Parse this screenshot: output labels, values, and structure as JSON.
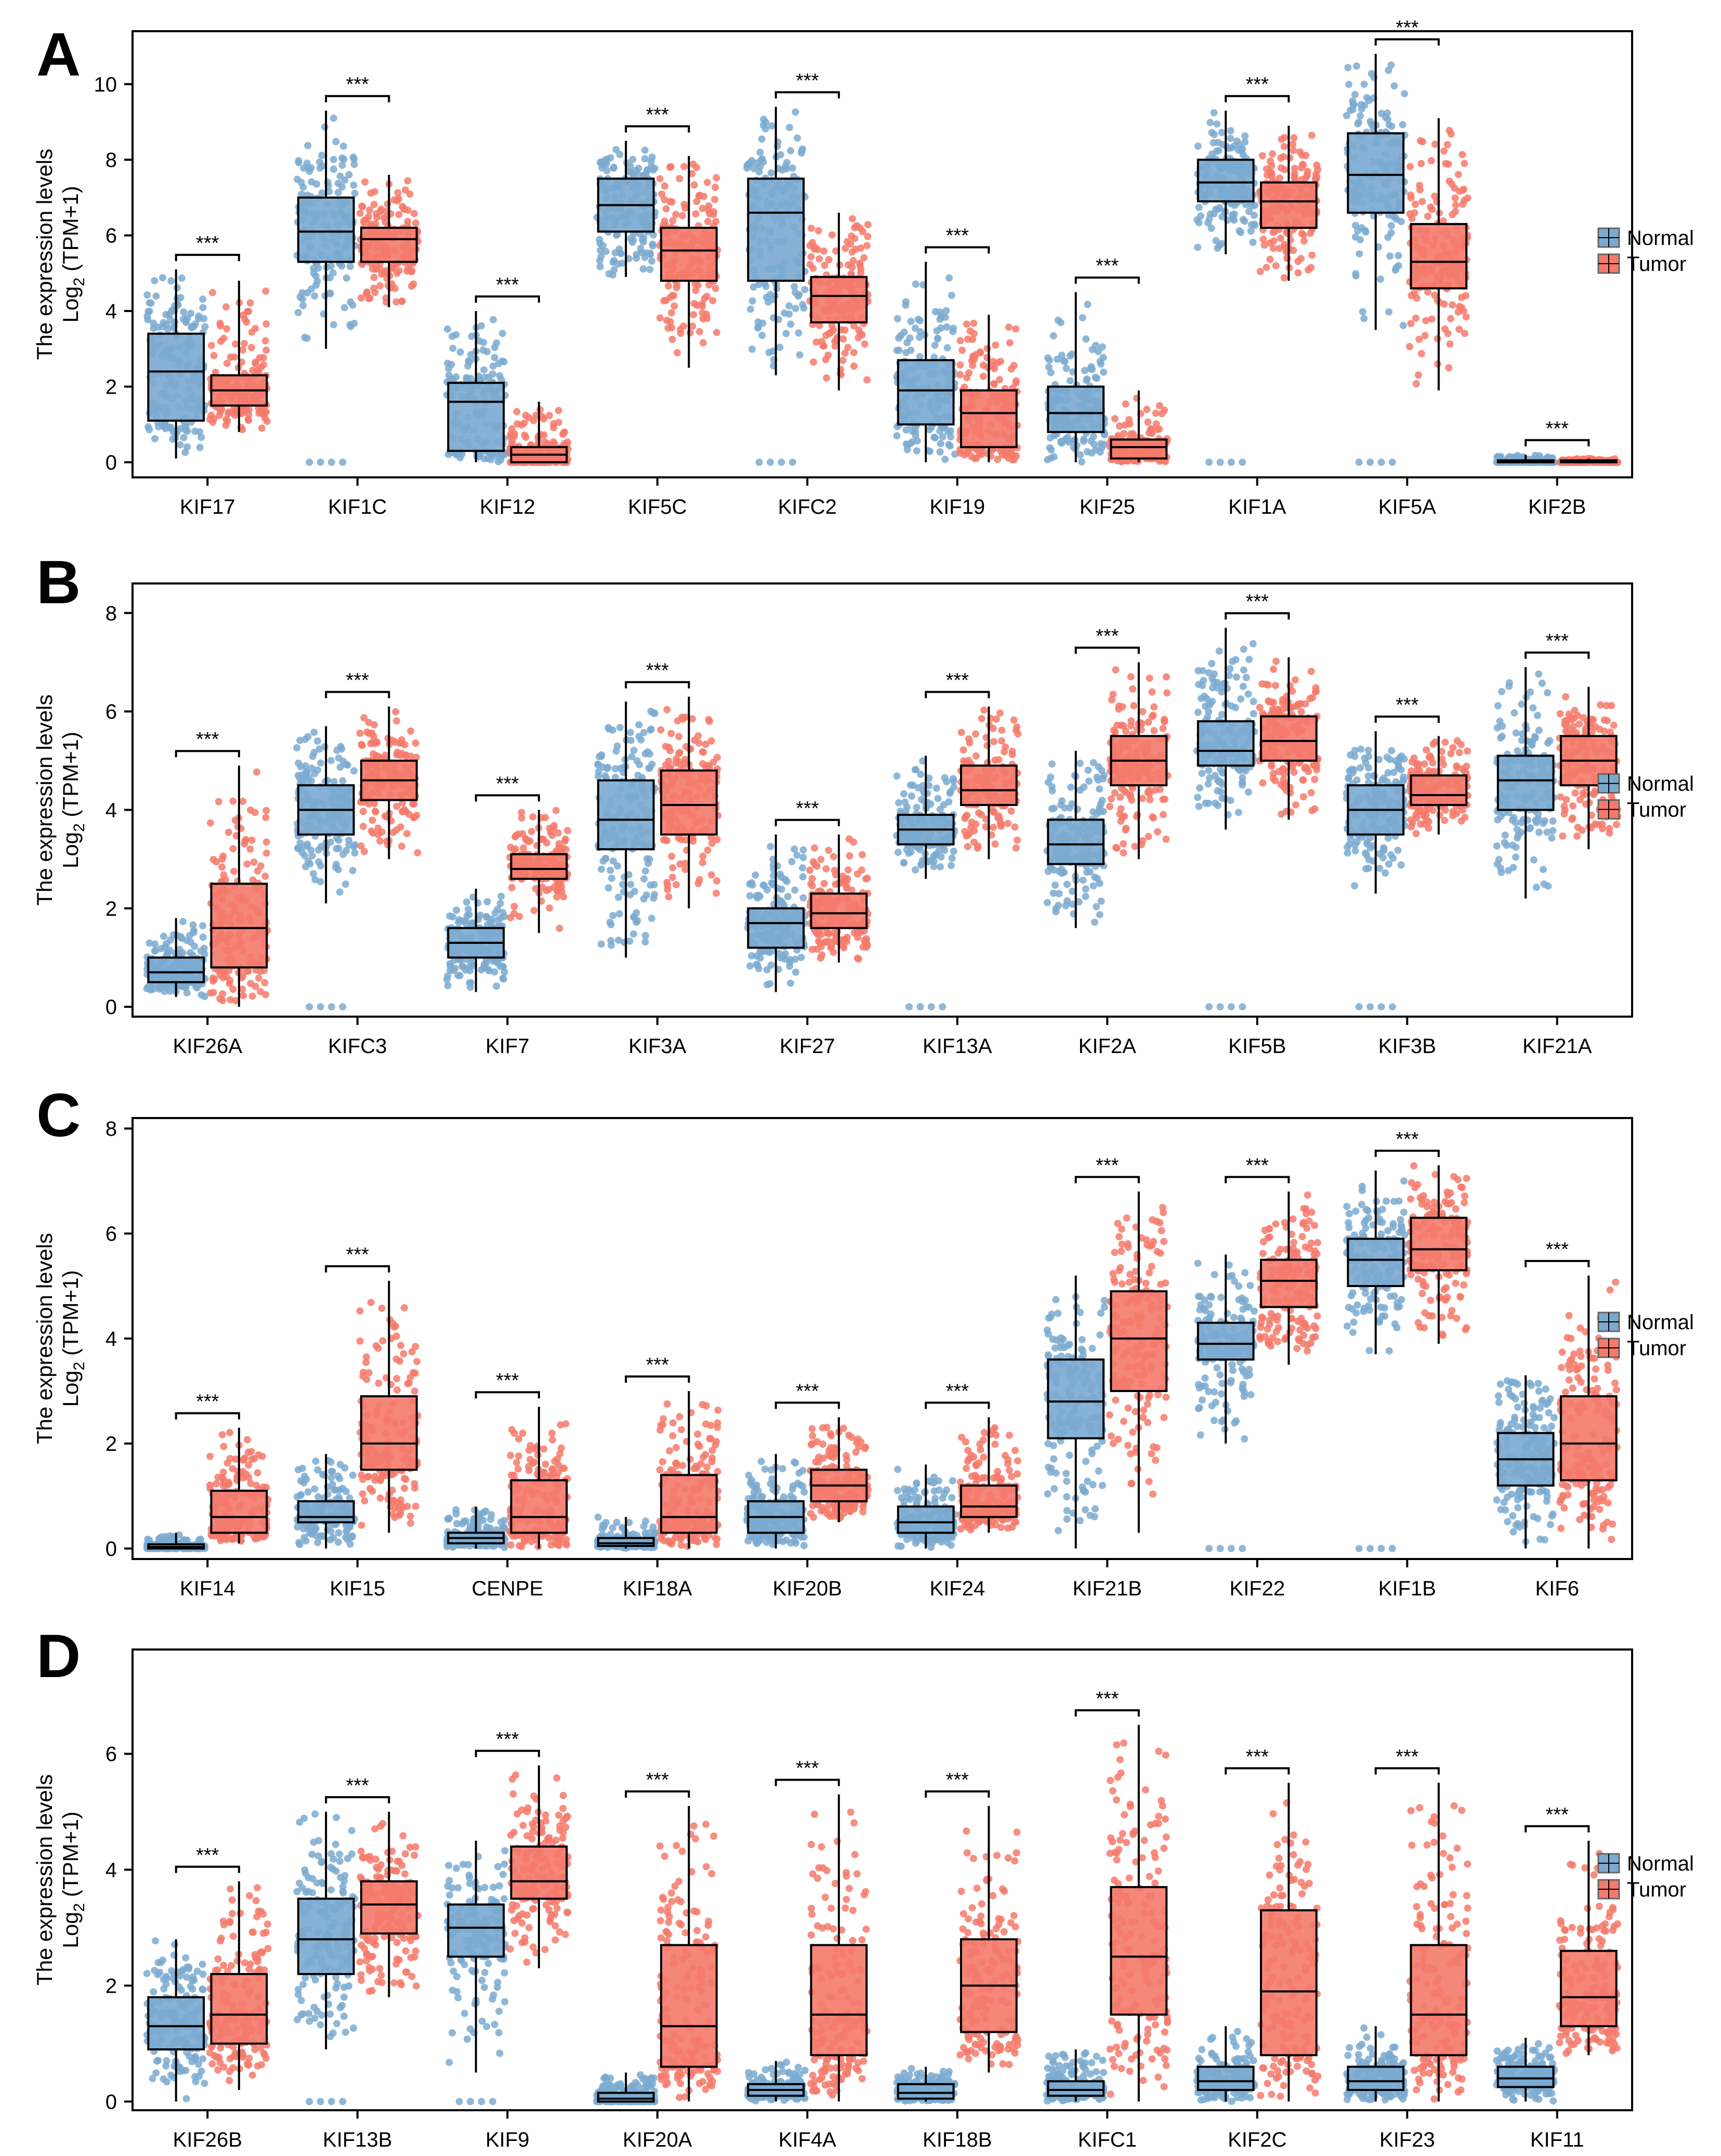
{
  "colors": {
    "normal": "#7BAAD0",
    "tumor": "#F47A6B",
    "axis": "#000000"
  },
  "significance": "***",
  "legend": {
    "normal": "Normal",
    "tumor": "Tumor"
  },
  "ylabel_main": "The expression levels",
  "ylabel_log": "Log",
  "ylabel_sub": "2",
  "ylabel_tail": " (TPM+1)",
  "chart_data": [
    {
      "panel": "A",
      "type": "box",
      "ylim": [
        -0.4,
        11.4
      ],
      "yticks": [
        0,
        2,
        4,
        6,
        8,
        10
      ],
      "categories": [
        "KIF17",
        "KIF1C",
        "KIF12",
        "KIF5C",
        "KIFC2",
        "KIF19",
        "KIF25",
        "KIF1A",
        "KIF5A",
        "KIF2B"
      ],
      "series": [
        {
          "name": "Normal",
          "boxes": [
            [
              0.1,
              1.1,
              2.4,
              3.4,
              5.1
            ],
            [
              3.0,
              5.3,
              6.1,
              7.0,
              9.3
            ],
            [
              0.0,
              0.3,
              1.6,
              2.1,
              4.0
            ],
            [
              4.9,
              6.1,
              6.8,
              7.5,
              8.5
            ],
            [
              2.3,
              4.8,
              6.6,
              7.5,
              9.4
            ],
            [
              0.0,
              1.0,
              1.9,
              2.7,
              5.3
            ],
            [
              0.0,
              0.8,
              1.3,
              2.0,
              4.5
            ],
            [
              5.5,
              6.9,
              7.4,
              8.0,
              9.3
            ],
            [
              3.5,
              6.6,
              7.6,
              8.7,
              10.8
            ],
            [
              0.0,
              0.0,
              0.0,
              0.05,
              0.2
            ]
          ]
        },
        {
          "name": "Tumor",
          "boxes": [
            [
              0.8,
              1.5,
              1.9,
              2.3,
              4.8
            ],
            [
              4.1,
              5.3,
              5.9,
              6.2,
              7.6
            ],
            [
              0.0,
              0.0,
              0.2,
              0.4,
              1.6
            ],
            [
              2.5,
              4.8,
              5.6,
              6.2,
              8.1
            ],
            [
              1.9,
              3.7,
              4.4,
              4.9,
              6.6
            ],
            [
              0.0,
              0.4,
              1.3,
              1.9,
              3.9
            ],
            [
              0.0,
              0.1,
              0.4,
              0.6,
              1.9
            ],
            [
              4.8,
              6.2,
              6.9,
              7.4,
              8.9
            ],
            [
              1.9,
              4.6,
              5.3,
              6.3,
              9.1
            ],
            [
              0.0,
              0.0,
              0.0,
              0.05,
              0.1
            ]
          ]
        }
      ]
    },
    {
      "panel": "B",
      "type": "box",
      "ylim": [
        -0.2,
        8.6
      ],
      "yticks": [
        0,
        2,
        4,
        6,
        8
      ],
      "categories": [
        "KIF26A",
        "KIFC3",
        "KIF7",
        "KIF3A",
        "KIF27",
        "KIF13A",
        "KIF2A",
        "KIF5B",
        "KIF3B",
        "KIF21A"
      ],
      "series": [
        {
          "name": "Normal",
          "boxes": [
            [
              0.2,
              0.5,
              0.7,
              1.0,
              1.8
            ],
            [
              2.1,
              3.5,
              4.0,
              4.5,
              5.7
            ],
            [
              0.3,
              1.0,
              1.3,
              1.6,
              2.4
            ],
            [
              1.0,
              3.2,
              3.8,
              4.6,
              6.2
            ],
            [
              0.3,
              1.2,
              1.7,
              2.0,
              3.5
            ],
            [
              2.6,
              3.3,
              3.6,
              3.9,
              5.1
            ],
            [
              1.6,
              2.9,
              3.3,
              3.8,
              5.2
            ],
            [
              3.6,
              4.9,
              5.2,
              5.8,
              7.7
            ],
            [
              2.3,
              3.5,
              4.0,
              4.5,
              5.6
            ],
            [
              2.2,
              4.0,
              4.6,
              5.1,
              6.9
            ]
          ]
        },
        {
          "name": "Tumor",
          "boxes": [
            [
              0.0,
              0.8,
              1.6,
              2.5,
              4.9
            ],
            [
              3.0,
              4.2,
              4.6,
              5.0,
              6.1
            ],
            [
              1.5,
              2.6,
              2.8,
              3.1,
              4.0
            ],
            [
              2.0,
              3.5,
              4.1,
              4.8,
              6.3
            ],
            [
              0.9,
              1.6,
              1.9,
              2.3,
              3.5
            ],
            [
              3.0,
              4.1,
              4.4,
              4.9,
              6.1
            ],
            [
              3.0,
              4.5,
              5.0,
              5.5,
              7.0
            ],
            [
              3.8,
              5.0,
              5.4,
              5.9,
              7.1
            ],
            [
              3.5,
              4.1,
              4.3,
              4.7,
              5.5
            ],
            [
              3.2,
              4.5,
              5.0,
              5.5,
              6.5
            ]
          ]
        }
      ]
    },
    {
      "panel": "C",
      "type": "box",
      "ylim": [
        -0.2,
        8.2
      ],
      "yticks": [
        0,
        2,
        4,
        6,
        8
      ],
      "categories": [
        "KIF14",
        "KIF15",
        "CENPE",
        "KIF18A",
        "KIF20B",
        "KIF24",
        "KIF21B",
        "KIF22",
        "KIF1B",
        "KIF6"
      ],
      "series": [
        {
          "name": "Normal",
          "boxes": [
            [
              0.0,
              0.0,
              0.03,
              0.08,
              0.3
            ],
            [
              0.0,
              0.5,
              0.6,
              0.9,
              1.8
            ],
            [
              0.0,
              0.1,
              0.2,
              0.3,
              0.8
            ],
            [
              0.0,
              0.05,
              0.1,
              0.2,
              0.6
            ],
            [
              0.0,
              0.3,
              0.6,
              0.9,
              1.8
            ],
            [
              0.0,
              0.3,
              0.5,
              0.8,
              1.6
            ],
            [
              0.0,
              2.1,
              2.8,
              3.6,
              5.2
            ],
            [
              2.0,
              3.6,
              3.9,
              4.3,
              5.6
            ],
            [
              3.7,
              5.0,
              5.5,
              5.9,
              7.2
            ],
            [
              0.0,
              1.2,
              1.7,
              2.2,
              3.3
            ]
          ]
        },
        {
          "name": "Tumor",
          "boxes": [
            [
              0.1,
              0.3,
              0.6,
              1.1,
              2.3
            ],
            [
              0.3,
              1.5,
              2.0,
              2.9,
              5.1
            ],
            [
              0.0,
              0.3,
              0.6,
              1.3,
              2.7
            ],
            [
              0.0,
              0.3,
              0.6,
              1.4,
              3.0
            ],
            [
              0.5,
              0.9,
              1.2,
              1.5,
              2.5
            ],
            [
              0.3,
              0.6,
              0.8,
              1.2,
              2.5
            ],
            [
              0.3,
              3.0,
              4.0,
              4.9,
              6.8
            ],
            [
              3.5,
              4.6,
              5.1,
              5.5,
              6.8
            ],
            [
              3.9,
              5.3,
              5.7,
              6.3,
              7.3
            ],
            [
              0.0,
              1.3,
              2.0,
              2.9,
              5.2
            ]
          ]
        }
      ]
    },
    {
      "panel": "D",
      "type": "box",
      "ylim": [
        -0.15,
        7.8
      ],
      "yticks": [
        0,
        2,
        4,
        6
      ],
      "categories": [
        "KIF26B",
        "KIF13B",
        "KIF9",
        "KIF20A",
        "KIF4A",
        "KIF18B",
        "KIFC1",
        "KIF2C",
        "KIF23",
        "KIF11"
      ],
      "series": [
        {
          "name": "Normal",
          "boxes": [
            [
              0.0,
              0.9,
              1.3,
              1.8,
              2.8
            ],
            [
              0.9,
              2.2,
              2.8,
              3.5,
              5.0
            ],
            [
              0.5,
              2.5,
              3.0,
              3.4,
              4.5
            ],
            [
              0.0,
              0.0,
              0.05,
              0.15,
              0.5
            ],
            [
              0.0,
              0.1,
              0.2,
              0.3,
              0.7
            ],
            [
              0.0,
              0.05,
              0.15,
              0.3,
              0.6
            ],
            [
              0.0,
              0.1,
              0.2,
              0.35,
              0.9
            ],
            [
              0.0,
              0.2,
              0.35,
              0.6,
              1.3
            ],
            [
              0.0,
              0.2,
              0.35,
              0.6,
              1.3
            ],
            [
              0.0,
              0.25,
              0.4,
              0.6,
              1.1
            ]
          ]
        },
        {
          "name": "Tumor",
          "boxes": [
            [
              0.2,
              1.0,
              1.5,
              2.2,
              3.8
            ],
            [
              1.8,
              2.9,
              3.4,
              3.8,
              5.0
            ],
            [
              2.3,
              3.5,
              3.8,
              4.4,
              5.8
            ],
            [
              0.0,
              0.6,
              1.3,
              2.7,
              5.1
            ],
            [
              0.0,
              0.8,
              1.5,
              2.7,
              5.3
            ],
            [
              0.5,
              1.2,
              2.0,
              2.8,
              5.1
            ],
            [
              0.0,
              1.5,
              2.5,
              3.7,
              6.5
            ],
            [
              0.0,
              0.8,
              1.9,
              3.3,
              5.5
            ],
            [
              0.0,
              0.8,
              1.5,
              2.7,
              5.5
            ],
            [
              0.8,
              1.3,
              1.8,
              2.6,
              4.5
            ]
          ]
        }
      ]
    }
  ]
}
